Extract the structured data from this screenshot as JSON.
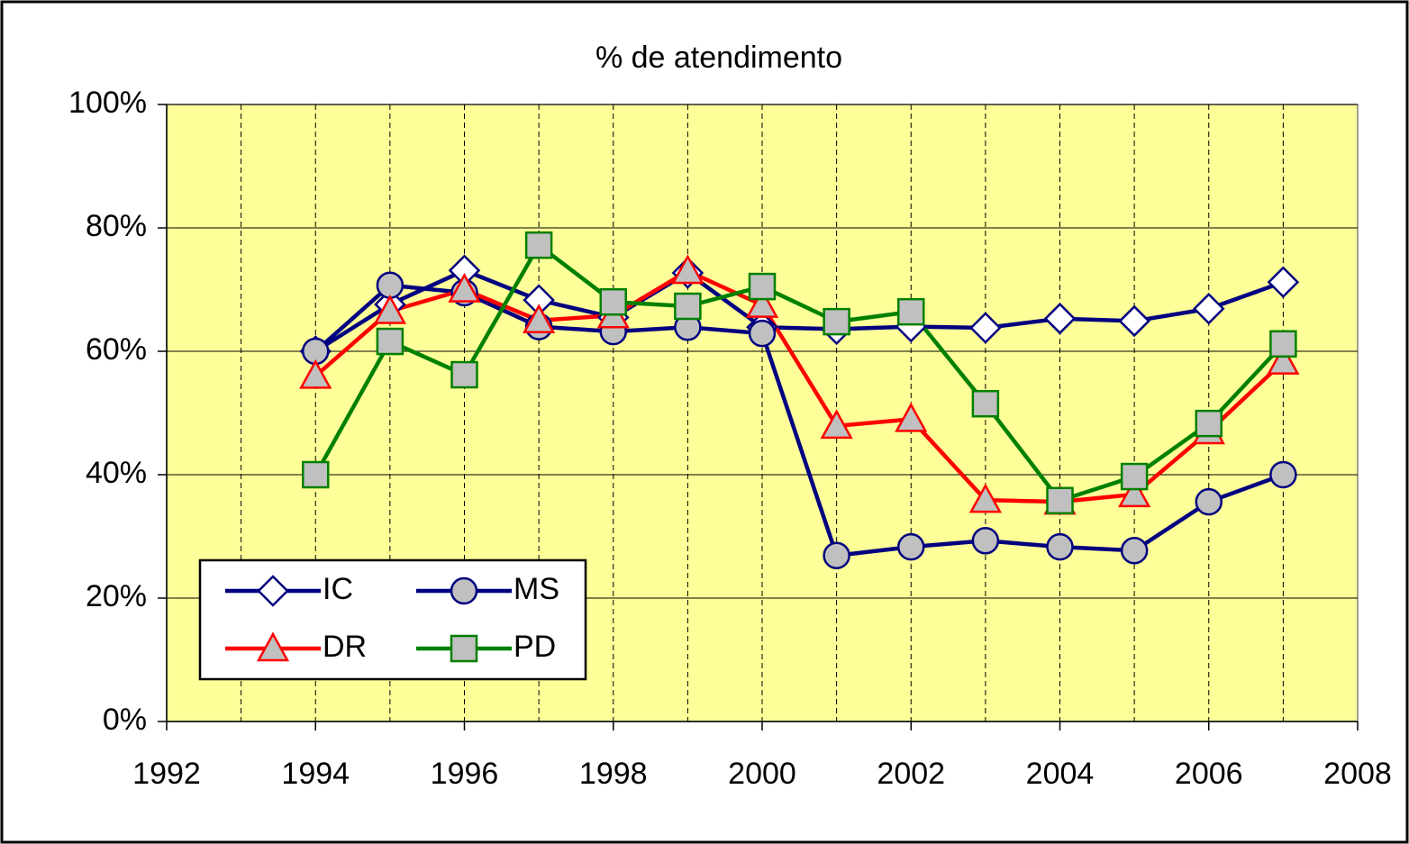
{
  "chart_data": {
    "type": "line",
    "title": "% de atendimento",
    "x": [
      1994,
      1995,
      1996,
      1997,
      1998,
      1999,
      2000,
      2001,
      2002,
      2003,
      2004,
      2005,
      2006,
      2007
    ],
    "series": [
      {
        "name": "IC",
        "color": "#000080",
        "marker": "diamond",
        "marker_fill": "#ffffff",
        "marker_stroke": "#000080",
        "values": [
          60,
          67.6,
          73.1,
          68.3,
          65.5,
          72.7,
          63.9,
          63.6,
          64,
          63.8,
          65.3,
          64.9,
          66.9,
          71.2
        ]
      },
      {
        "name": "MS",
        "color": "#000080",
        "marker": "circle",
        "marker_fill": "#c0c0c0",
        "marker_stroke": "#000080",
        "values": [
          60,
          70.7,
          69.5,
          64,
          63.2,
          63.9,
          62.9,
          26.9,
          28.3,
          29.3,
          28.3,
          27.7,
          35.6,
          40
        ]
      },
      {
        "name": "DR",
        "color": "#ff0000",
        "marker": "triangle",
        "marker_fill": "#c0c0c0",
        "marker_stroke": "#ff0000",
        "values": [
          56,
          66.5,
          70,
          65,
          65.8,
          73,
          67.5,
          47.9,
          49,
          35.9,
          35.6,
          36.8,
          47,
          58.3
        ]
      },
      {
        "name": "PD",
        "color": "#008000",
        "marker": "square",
        "marker_fill": "#c0c0c0",
        "marker_stroke": "#008000",
        "values": [
          40,
          61.6,
          56.2,
          77.2,
          68,
          67.3,
          70.5,
          64.8,
          66.4,
          51.5,
          35.8,
          39.7,
          48.3,
          61.2
        ]
      }
    ],
    "xlim": [
      1992,
      2008
    ],
    "xticks": [
      1992,
      1994,
      1996,
      1998,
      2000,
      2002,
      2004,
      2006,
      2008
    ],
    "x_minor_ticks": [
      1993,
      1994,
      1995,
      1996,
      1997,
      1998,
      1999,
      2000,
      2001,
      2002,
      2003,
      2004,
      2005,
      2006,
      2007
    ],
    "ylim": [
      0,
      100
    ],
    "yticks": [
      {
        "value": 0,
        "label": "0%"
      },
      {
        "value": 20,
        "label": "20%"
      },
      {
        "value": 40,
        "label": "40%"
      },
      {
        "value": 60,
        "label": "60%"
      },
      {
        "value": 80,
        "label": "80%"
      },
      {
        "value": 100,
        "label": "100%"
      }
    ],
    "grid": true,
    "plot_background": "#ffff99",
    "legend": "lower left"
  }
}
